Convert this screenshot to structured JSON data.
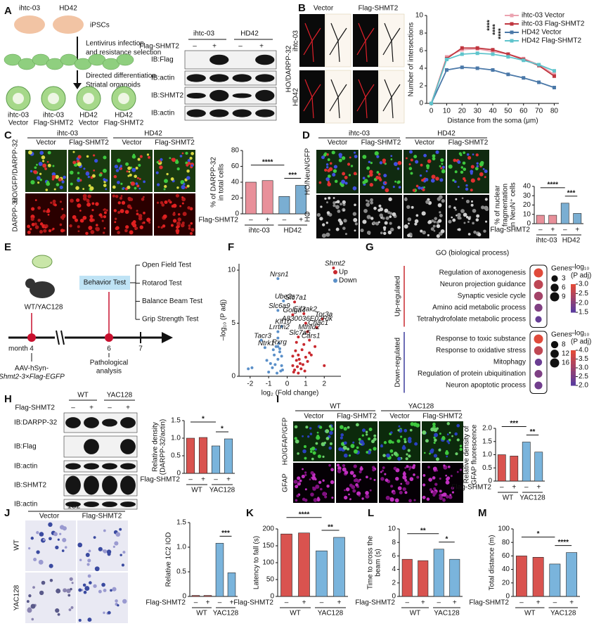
{
  "panel_a": {
    "label": "A",
    "cell_lines": [
      "ihtc-03",
      "HD42"
    ],
    "ipsc": "iPSCs",
    "step1": [
      "Lentivirus infection",
      "and resistance selection"
    ],
    "step2": [
      "Directed differentiation",
      "Striatal organoids"
    ],
    "organoids": [
      [
        "ihtc-03",
        "Vector"
      ],
      [
        "ihtc-03",
        "Flag-SHMT2"
      ],
      [
        "HD42",
        "Vector"
      ],
      [
        "HD42",
        "Flag-SHMT2"
      ]
    ],
    "blot": {
      "groups": [
        "ihtc-03",
        "HD42"
      ],
      "treatment": "Flag-SHMT2",
      "signs": [
        "–",
        "+",
        "–",
        "+"
      ],
      "rows": [
        "IB:Flag",
        "IB:actin",
        "IB:SHMT2",
        "IB:actin"
      ]
    }
  },
  "panel_b": {
    "label": "B",
    "columns": [
      "Vector",
      "Flag-SHMT2"
    ],
    "stain": "HO/DARPP-32",
    "rows": [
      "ihtc-03",
      "HD42"
    ],
    "chart": {
      "type": "line",
      "xlabel": "Distance from the soma (μm)",
      "ylabel": "Number of intersections",
      "x": [
        0,
        10,
        20,
        30,
        40,
        50,
        60,
        70,
        80
      ],
      "xlim": [
        -3,
        83
      ],
      "xticks": [
        0,
        10,
        20,
        30,
        40,
        50,
        60,
        70,
        80
      ],
      "ylim": [
        0,
        10
      ],
      "yticks": [
        0,
        2,
        4,
        6,
        8,
        10
      ],
      "series": [
        {
          "name": "ihtc-03 Vector",
          "color": "#eba3b0",
          "values": [
            0,
            5.3,
            6.1,
            6.2,
            5.9,
            5.6,
            5.1,
            4.4,
            3.3
          ]
        },
        {
          "name": "ihtc-03 Flag-SHMT2",
          "color": "#c0363f",
          "values": [
            0,
            5.1,
            6.3,
            6.3,
            6.1,
            5.6,
            5.0,
            4.3,
            3.1
          ]
        },
        {
          "name": "HD42  Vector",
          "color": "#4a78a8",
          "values": [
            0,
            3.8,
            4.1,
            4.0,
            3.8,
            3.3,
            2.9,
            2.4,
            1.8
          ]
        },
        {
          "name": "HD42  Flag-SHMT2",
          "color": "#5fc4cc",
          "values": [
            0,
            5.0,
            5.6,
            5.7,
            5.6,
            5.3,
            4.9,
            4.4,
            3.7
          ]
        }
      ],
      "significance": [
        "****",
        "****",
        "****"
      ]
    }
  },
  "panel_c": {
    "label": "C",
    "groups": [
      "ihtc-03",
      "HD42"
    ],
    "columns": [
      "Vector",
      "Flag-SHMT2",
      "Vector",
      "Flag-SHMT2"
    ],
    "stains": [
      "HO/GFP/DARPP-32",
      "DARPP-32"
    ],
    "chart": {
      "type": "bar",
      "ylabel": [
        "% of DARPP-32",
        "in total cells"
      ],
      "ylim": [
        0,
        80
      ],
      "yticks": [
        0,
        20,
        40,
        60,
        80
      ],
      "treatment": "Flag-SHMT2",
      "signs": [
        "–",
        "+",
        "–",
        "+"
      ],
      "groups": [
        "ihtc-03",
        "HD42"
      ],
      "group_colors": [
        "#e8909a",
        "#7aaed2"
      ],
      "values": [
        40,
        42,
        22,
        36
      ],
      "significance": [
        "****",
        "***"
      ]
    }
  },
  "panel_d": {
    "label": "D",
    "groups": [
      "ihtc-03",
      "HD42"
    ],
    "columns": [
      "Vector",
      "Flag-SHMT2",
      "Vector",
      "Flag-SHMT2"
    ],
    "stains": [
      "HO/NeuN/GFP",
      "HO"
    ],
    "chart": {
      "type": "bar",
      "ylabel": [
        "% of nuclear",
        "fragmentation",
        "in NeuN⁺ cells"
      ],
      "ylim": [
        0,
        40
      ],
      "yticks": [
        0,
        10,
        20,
        30,
        40
      ],
      "treatment": "Flag-SHMT2",
      "signs": [
        "–",
        "+",
        "–",
        "+"
      ],
      "groups": [
        "ihtc-03",
        "HD42"
      ],
      "group_colors": [
        "#e8909a",
        "#7aaed2"
      ],
      "values": [
        9,
        9,
        22,
        11
      ],
      "significance": [
        "****",
        "***"
      ]
    }
  },
  "panel_e": {
    "label": "E",
    "mouse": "WT/YAC128",
    "behavior": "Behavior Test",
    "tests": [
      "Open Field Test",
      "Rotarod Test",
      "Balance Beam Test",
      "Grip Strength Test"
    ],
    "timeline": {
      "unit": "month",
      "points": [
        "4",
        "6",
        "7"
      ]
    },
    "injection": [
      "AAV-hSyn-",
      "Shmt2-3×Flag-EGFP"
    ],
    "analysis": [
      "Pathological",
      "analysis"
    ]
  },
  "panel_f": {
    "label": "F",
    "chart": {
      "type": "scatter",
      "xlabel": "log₂ (Fold change)",
      "ylabel": "–log₁₀ (P adj)",
      "xlim": [
        -2.6,
        2.9
      ],
      "xticks": [
        -2,
        -1,
        0,
        1,
        2
      ],
      "ylim": [
        0,
        10.6
      ],
      "yticks": [
        0,
        5,
        10
      ],
      "series": [
        {
          "name": "Up",
          "color": "#c8282e",
          "x": [
            0.3,
            0.5,
            0.6,
            0.8,
            1.0,
            0.4,
            0.7,
            0.9,
            1.2,
            1.5,
            0.35,
            0.55,
            0.65,
            0.45,
            0.85,
            1.1,
            1.3,
            0.5,
            0.75,
            0.95,
            2.0,
            0.3,
            0.6
          ],
          "values": [
            1.0,
            1.5,
            2.0,
            2.5,
            1.8,
            0.6,
            1.2,
            3.0,
            2.2,
            2.8,
            0.4,
            0.9,
            1.6,
            2.4,
            1.1,
            1.4,
            2.0,
            3.2,
            0.7,
            0.5,
            1.0,
            1.9,
            0.3
          ]
        },
        {
          "name": "Down",
          "color": "#5a8fc8",
          "x": [
            -0.3,
            -0.5,
            -0.4,
            -0.7,
            -0.9,
            -0.35,
            -0.6,
            -0.8,
            -1.1,
            -0.45,
            -0.55,
            -0.3,
            -1.9,
            -2.1,
            -0.65,
            -0.4,
            -0.25,
            -1.0,
            -0.5,
            -0.75
          ],
          "values": [
            1.0,
            1.6,
            2.3,
            2.0,
            1.2,
            0.5,
            2.8,
            0.8,
            1.5,
            3.1,
            0.3,
            1.9,
            0.8,
            0.7,
            1.1,
            2.6,
            0.6,
            0.4,
            3.6,
            2.5
          ]
        }
      ],
      "genes": [
        {
          "name": "Shmt2",
          "x": 2.5,
          "y": 10.2
        },
        {
          "name": "Nrsn1",
          "x": -0.5,
          "y": 9.2
        },
        {
          "name": "Ube2s",
          "x": -0.2,
          "y": 7.1
        },
        {
          "name": "Slc7a1",
          "x": 0.4,
          "y": 7.0
        },
        {
          "name": "Slc6a9",
          "x": -0.5,
          "y": 6.2
        },
        {
          "name": "Golga4",
          "x": 0.3,
          "y": 5.8
        },
        {
          "name": "Eif2ak2",
          "x": 0.9,
          "y": 5.9
        },
        {
          "name": "Tor3a",
          "x": 1.9,
          "y": 5.4
        },
        {
          "name": "A830036E02Rik",
          "x": 1.0,
          "y": 5.0
        },
        {
          "name": "Chac1",
          "x": 1.6,
          "y": 4.6
        },
        {
          "name": "Klf10",
          "x": -0.3,
          "y": 4.7
        },
        {
          "name": "Lrrtm2",
          "x": -0.5,
          "y": 4.2
        },
        {
          "name": "Mthfd2",
          "x": 1.1,
          "y": 4.2
        },
        {
          "name": "Tacr3",
          "x": -1.4,
          "y": 3.4
        },
        {
          "name": "Slc7a5",
          "x": 0.6,
          "y": 3.7
        },
        {
          "name": "Ntrk1",
          "x": -1.2,
          "y": 2.7
        },
        {
          "name": "Rxrg",
          "x": -0.5,
          "y": 2.8
        },
        {
          "name": "Cars1",
          "x": 1.2,
          "y": 3.4
        }
      ]
    }
  },
  "panel_g": {
    "label": "G",
    "title": "GO (biological process)",
    "color_scale": [
      "#e04a3a",
      "#5d3c9c"
    ],
    "size_title": "Genes",
    "color_title": [
      "–log₁₀",
      "(P adj)"
    ],
    "blocks": [
      {
        "name": "Up-regulated",
        "side_color": "#c8282e",
        "terms": [
          {
            "term": "Regulation of axonogenesis",
            "genes": 9,
            "padj": 3.0
          },
          {
            "term": "Neuron projection guidance",
            "genes": 9,
            "padj": 2.6
          },
          {
            "term": "Synaptic vesicle cycle",
            "genes": 8,
            "padj": 2.3
          },
          {
            "term": "Amino acid metabolic process",
            "genes": 6,
            "padj": 1.9
          },
          {
            "term": "Tetrahydrofolate metabolic process",
            "genes": 3,
            "padj": 1.6
          }
        ],
        "size_ticks": [
          3,
          6,
          9
        ],
        "clim": [
          1.5,
          3.0
        ],
        "color_ticks": [
          {
            "value": 3,
            "label": "3.0"
          },
          2.5,
          {
            "value": 2,
            "label": "2.0"
          },
          1.5
        ]
      },
      {
        "name": "Down-regulated",
        "side_color": "#3c3c9c",
        "terms": [
          {
            "term": "Response to toxic substance",
            "genes": 16,
            "padj": 4.0
          },
          {
            "term": "Response to oxidative stress",
            "genes": 14,
            "padj": 3.5
          },
          {
            "term": "Mitophagy",
            "genes": 8,
            "padj": 2.2
          },
          {
            "term": "Regulation of protein ubiquitination",
            "genes": 10,
            "padj": 2.5
          },
          {
            "term": "Neuron apoptotic process",
            "genes": 10,
            "padj": 2.3
          }
        ],
        "size_ticks": [
          8,
          12,
          16
        ],
        "clim": [
          2.0,
          4.0
        ],
        "color_ticks": [
          {
            "value": 4,
            "label": "4.0"
          },
          3.5,
          {
            "value": 3,
            "label": "3.0"
          },
          2.5,
          {
            "value": 2,
            "label": "2.0"
          }
        ]
      }
    ]
  },
  "panel_h": {
    "label": "H",
    "blot": {
      "groups": [
        "WT",
        "YAC128"
      ],
      "treatment": "Flag-SHMT2",
      "signs": [
        "–",
        "+",
        "–",
        "+"
      ],
      "rows": [
        "IB:DARPP-32",
        "IB:Flag",
        "IB:actin",
        "IB:SHMT2",
        "IB:actin"
      ]
    },
    "chart": {
      "type": "bar",
      "ylabel": [
        "Relative density",
        "(DARPP-32/actin)"
      ],
      "ylim": [
        0,
        1.5
      ],
      "yticks": [
        0,
        0.5,
        {
          "value": 1,
          "label": "1.0"
        },
        1.5
      ],
      "treatment": "Flag-SHMT2",
      "signs": [
        "–",
        "+",
        "–",
        "+"
      ],
      "groups": [
        "WT",
        "YAC128"
      ],
      "group_colors": [
        "#d9534f",
        "#7ab4dc"
      ],
      "values": [
        1.0,
        1.02,
        0.78,
        0.98
      ],
      "significance": [
        "*",
        "*"
      ]
    }
  },
  "panel_i": {
    "label": "I",
    "groups": [
      "WT",
      "YAC128"
    ],
    "columns": [
      "Vector",
      "Flag-SHMT2",
      "Vector",
      "Flag-SHMT2"
    ],
    "stains": [
      "HO/GFAP/GFP",
      "GFAP"
    ],
    "chart": {
      "type": "bar",
      "ylabel": [
        "Relative density of",
        "GFAP fluorescence"
      ],
      "ylim": [
        0,
        2
      ],
      "yticks": [
        0,
        0.5,
        {
          "value": 1,
          "label": "1.0"
        },
        1.5,
        {
          "value": 2,
          "label": "2.0"
        }
      ],
      "treatment": "Flag-SHMT2",
      "signs": [
        "–",
        "+",
        "–",
        "+"
      ],
      "groups": [
        "WT",
        "YAC128"
      ],
      "group_colors": [
        "#d9534f",
        "#7ab4dc"
      ],
      "values": [
        1.0,
        0.95,
        1.48,
        1.1
      ],
      "significance": [
        "***",
        "**"
      ]
    }
  },
  "panel_j": {
    "label": "J",
    "stain": "1C2",
    "columns": [
      "Vector",
      "Flag-SHMT2"
    ],
    "rows": [
      "WT",
      "YAC128"
    ],
    "chart": {
      "type": "bar",
      "ylabel": [
        "Relative 1C2 IOD"
      ],
      "ylim": [
        0,
        1.5
      ],
      "yticks": [
        0,
        0.5,
        {
          "value": 1,
          "label": "1.0"
        },
        1.5
      ],
      "treatment": "Flag-SHMT2",
      "signs": [
        "–",
        "+",
        "–",
        "+"
      ],
      "groups": [
        "WT",
        "YAC128"
      ],
      "group_colors": [
        "#d9534f",
        "#7ab4dc"
      ],
      "values": [
        0.02,
        0.02,
        1.08,
        0.48
      ],
      "significance": [
        "***"
      ]
    }
  },
  "panel_k": {
    "label": "K",
    "chart": {
      "type": "bar",
      "ylabel": [
        "Latency to fall (s)"
      ],
      "ylim": [
        0,
        200
      ],
      "yticks": [
        0,
        50,
        100,
        150,
        200
      ],
      "treatment": "Flag-SHMT2",
      "signs": [
        "–",
        "+",
        "–",
        "+"
      ],
      "groups": [
        "WT",
        "YAC128"
      ],
      "group_colors": [
        "#d9534f",
        "#7ab4dc"
      ],
      "values": [
        185,
        188,
        135,
        175
      ],
      "significance": [
        "****",
        "**"
      ]
    }
  },
  "panel_l": {
    "label": "L",
    "chart": {
      "type": "bar",
      "ylabel": [
        "Time to cross the",
        "beam (s)"
      ],
      "ylim": [
        0,
        10
      ],
      "yticks": [
        0,
        2,
        4,
        6,
        8,
        10
      ],
      "treatment": "Flag-SHMT2",
      "signs": [
        "–",
        "+",
        "–",
        "+"
      ],
      "groups": [
        "WT",
        "YAC128"
      ],
      "group_colors": [
        "#d9534f",
        "#7ab4dc"
      ],
      "values": [
        5.5,
        5.3,
        7.0,
        5.5
      ],
      "significance": [
        "**",
        "*"
      ]
    }
  },
  "panel_m": {
    "label": "M",
    "chart": {
      "type": "bar",
      "ylabel": [
        "Total distance (m)"
      ],
      "ylim": [
        0,
        100
      ],
      "yticks": [
        0,
        20,
        40,
        60,
        80,
        100
      ],
      "treatment": "Flag-SHMT2",
      "signs": [
        "–",
        "+",
        "–",
        "+"
      ],
      "groups": [
        "WT",
        "YAC128"
      ],
      "group_colors": [
        "#d9534f",
        "#7ab4dc"
      ],
      "values": [
        60,
        58,
        48,
        65
      ],
      "significance": [
        "*",
        "****"
      ]
    }
  }
}
